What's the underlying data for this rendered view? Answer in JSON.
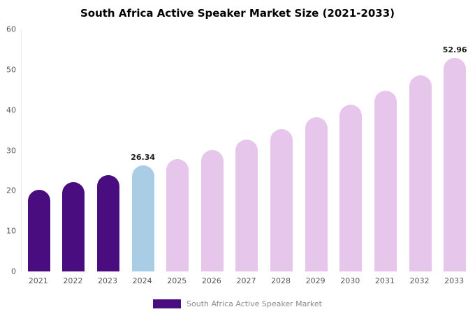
{
  "chart_data": {
    "type": "bar",
    "title": "South Africa Active Speaker Market Size (2021-2033)",
    "categories": [
      "2021",
      "2022",
      "2023",
      "2024",
      "2025",
      "2026",
      "2027",
      "2028",
      "2029",
      "2030",
      "2031",
      "2032",
      "2033"
    ],
    "values": [
      20.3,
      22.1,
      23.9,
      26.34,
      27.9,
      30.1,
      32.6,
      35.3,
      38.3,
      41.4,
      44.8,
      48.6,
      52.96
    ],
    "bar_colors": [
      "#4a0d7f",
      "#4a0d7f",
      "#4a0d7f",
      "#a9cde4",
      "#e6c6ea",
      "#e6c6ea",
      "#e6c6ea",
      "#e6c6ea",
      "#e6c6ea",
      "#e6c6ea",
      "#e6c6ea",
      "#e6c6ea",
      "#e6c6ea"
    ],
    "data_labels": [
      {
        "index": 3,
        "text": "26.34"
      },
      {
        "index": 12,
        "text": "52.96"
      }
    ],
    "ylim": [
      0,
      60
    ],
    "yticks": [
      0,
      10,
      20,
      30,
      40,
      50,
      60
    ],
    "xlabel": "",
    "ylabel": "",
    "grid": false,
    "legend_position": "bottom"
  },
  "legend": {
    "label": "South Africa Active Speaker Market",
    "color": "#4a0d7f"
  }
}
